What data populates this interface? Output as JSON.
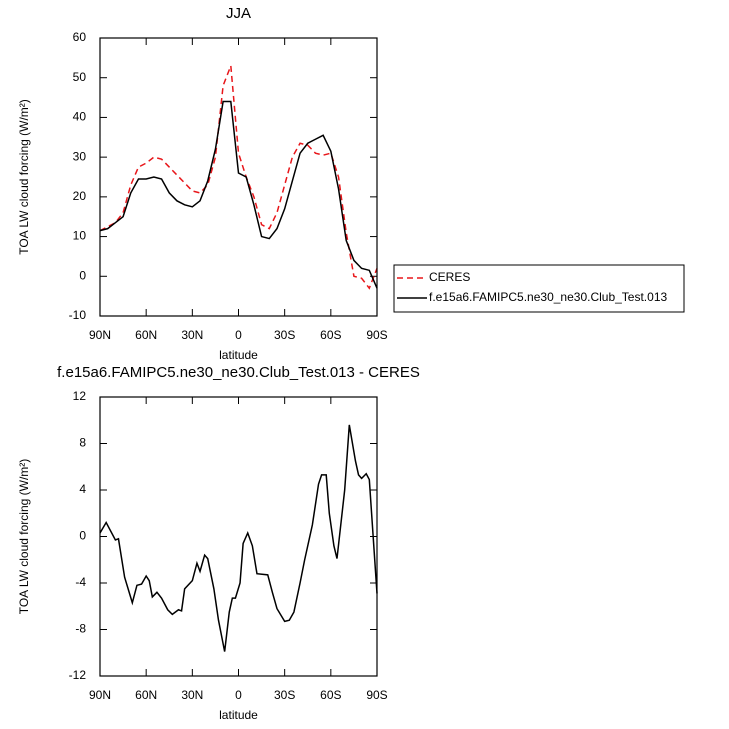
{
  "chart_data": [
    {
      "type": "line",
      "title": "JJA",
      "xlabel": "latitude",
      "ylabel": "TOA LW cloud forcing (W/m²)",
      "x": [
        90,
        85,
        80,
        75,
        70,
        65,
        60,
        55,
        50,
        45,
        40,
        35,
        30,
        25,
        20,
        15,
        10,
        5,
        0,
        -5,
        -10,
        -15,
        -20,
        -25,
        -30,
        -35,
        -40,
        -45,
        -50,
        -55,
        -60,
        -65,
        -70,
        -75,
        -80,
        -85,
        -90
      ],
      "series": [
        {
          "name": "CERES",
          "color": "#e8161a",
          "line_style": "dashed",
          "values": [
            11.5,
            12.5,
            13.5,
            16,
            23,
            27.5,
            28.5,
            30,
            29.5,
            27.5,
            25.5,
            23.5,
            21.5,
            21,
            23,
            30,
            48,
            53,
            31,
            25,
            20,
            13,
            12,
            16,
            23,
            30,
            33.5,
            33,
            31,
            30.5,
            31,
            25,
            11,
            0,
            -0.5,
            -3,
            2
          ]
        },
        {
          "name": "f.e15a6.FAMIPC5.ne30_ne30.Club_Test.013",
          "color": "#000000",
          "line_style": "solid",
          "values": [
            11.5,
            12,
            13.5,
            15,
            21,
            24.5,
            24.5,
            25,
            24.5,
            21,
            19,
            18,
            17.5,
            19,
            24,
            32,
            44,
            44,
            26,
            25,
            18,
            10,
            9.5,
            12,
            17,
            24,
            31,
            33.5,
            34.5,
            35.5,
            31.5,
            22,
            9,
            4,
            2,
            1.5,
            -3
          ]
        }
      ],
      "xlim": [
        90,
        -90
      ],
      "xticks": [
        {
          "value": 90,
          "label": "90N"
        },
        {
          "value": 60,
          "label": "60N"
        },
        {
          "value": 30,
          "label": "30N"
        },
        {
          "value": 0,
          "label": "0"
        },
        {
          "value": -30,
          "label": "30S"
        },
        {
          "value": -60,
          "label": "60S"
        },
        {
          "value": -90,
          "label": "90S"
        }
      ],
      "ylim": [
        -10,
        60
      ],
      "yticks": [
        -10,
        0,
        10,
        20,
        30,
        40,
        50,
        60
      ],
      "legend_position": "right"
    },
    {
      "type": "line",
      "title": "f.e15a6.FAMIPC5.ne30_ne30.Club_Test.013 - CERES",
      "xlabel": "latitude",
      "ylabel": "TOA LW cloud forcing (W/m²)",
      "x": [
        90,
        86,
        80,
        78,
        74,
        69,
        66,
        63,
        60,
        58,
        56,
        53,
        50,
        46,
        43,
        39,
        37,
        35,
        30,
        27,
        25,
        22,
        20,
        16,
        13,
        9,
        6,
        4,
        2,
        -1,
        -3,
        -6,
        -9,
        -12,
        -19,
        -22,
        -25,
        -30,
        -33,
        -36,
        -40,
        -43,
        -48,
        -52,
        -54,
        -57,
        -59,
        -62,
        -64,
        -69,
        -72,
        -76,
        -78,
        -80,
        -83,
        -85,
        -90
      ],
      "color": "#000000",
      "values": [
        0.3,
        1.2,
        -0.3,
        -0.2,
        -3.5,
        -5.7,
        -4.2,
        -4.1,
        -3.4,
        -3.8,
        -5.2,
        -4.8,
        -5.3,
        -6.3,
        -6.7,
        -6.3,
        -6.4,
        -4.5,
        -3.8,
        -2.3,
        -3,
        -1.6,
        -1.9,
        -4.5,
        -7.2,
        -9.9,
        -6.5,
        -5.3,
        -5.3,
        -4,
        -0.6,
        0.3,
        -0.8,
        -3.2,
        -3.3,
        -4.8,
        -6.2,
        -7.3,
        -7.2,
        -6.5,
        -4,
        -2,
        1,
        4.5,
        5.3,
        5.3,
        2,
        -0.8,
        -1.9,
        4,
        9.6,
        6.5,
        5.3,
        5,
        5.4,
        4.9,
        -4.9
      ],
      "xlim": [
        90,
        -90
      ],
      "xticks": [
        {
          "value": 90,
          "label": "90N"
        },
        {
          "value": 60,
          "label": "60N"
        },
        {
          "value": 30,
          "label": "30N"
        },
        {
          "value": 0,
          "label": "0"
        },
        {
          "value": -30,
          "label": "30S"
        },
        {
          "value": -60,
          "label": "60S"
        },
        {
          "value": -90,
          "label": "90S"
        }
      ],
      "ylim": [
        -12,
        12
      ],
      "yticks": [
        -12,
        -8,
        -4,
        0,
        4,
        8,
        12
      ]
    }
  ]
}
